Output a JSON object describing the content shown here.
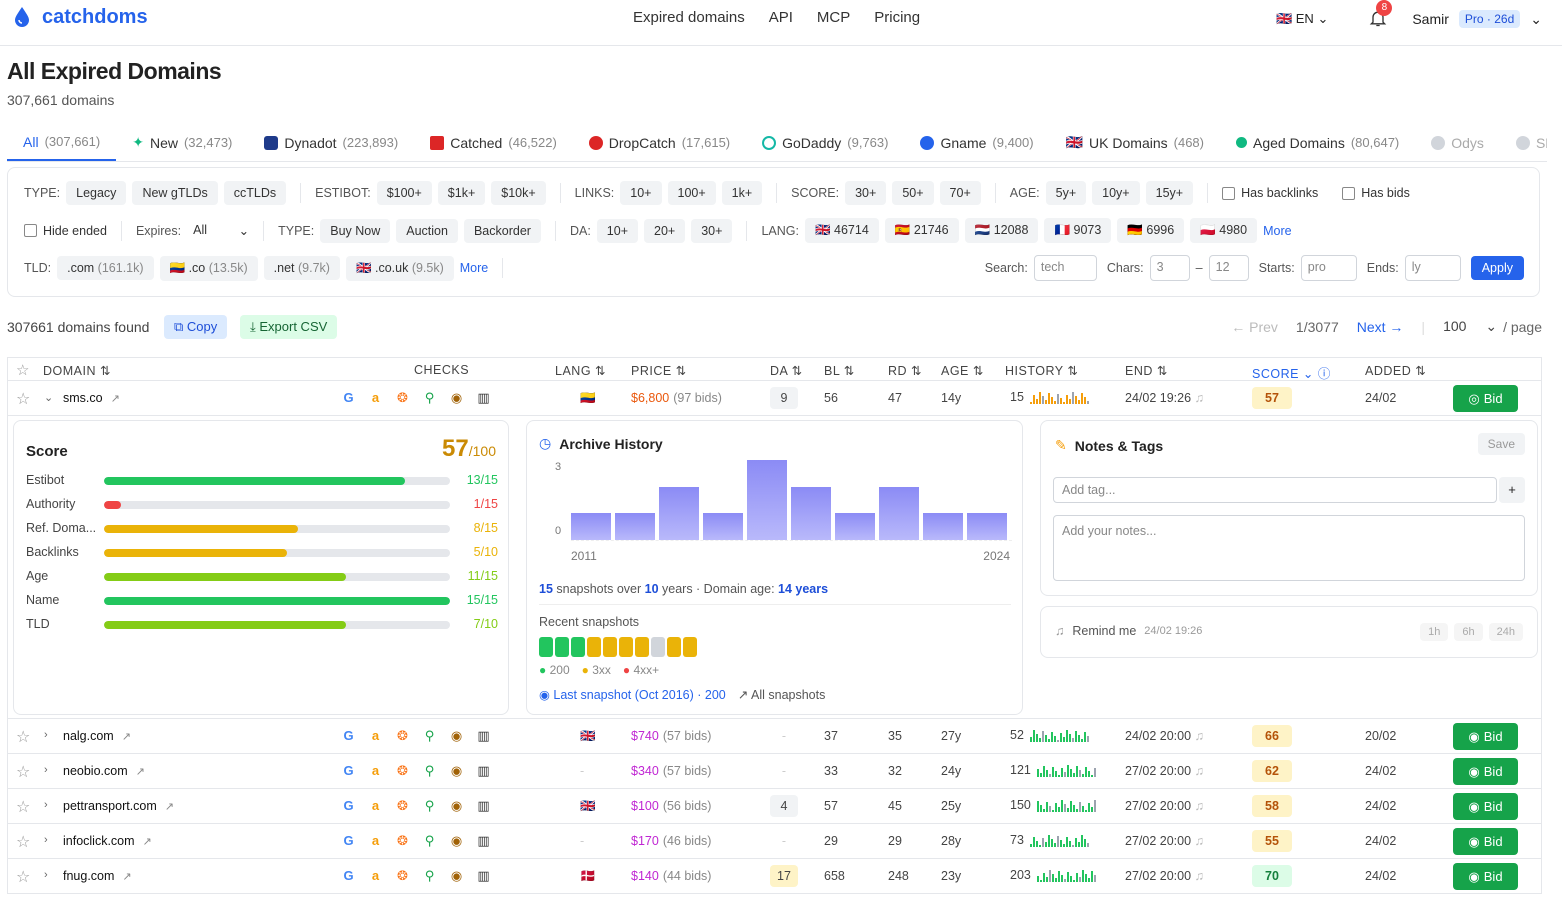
{
  "brand": "catchdoms",
  "nav": [
    "Expired domains",
    "API",
    "MCP",
    "Pricing"
  ],
  "lang": "EN",
  "notif_count": "8",
  "user": "Samir",
  "plan": "Pro · 26d",
  "title": "All Expired Domains",
  "subtitle": "307,661 domains",
  "tabs": [
    {
      "label": "All",
      "count": "(307,661)",
      "icon": "none"
    },
    {
      "label": "New",
      "count": "(32,473)",
      "icon": "sparkle-icon"
    },
    {
      "label": "Dynadot",
      "count": "(223,893)",
      "icon": "dynadot-icon"
    },
    {
      "label": "Catched",
      "count": "(46,522)",
      "icon": "catched-icon"
    },
    {
      "label": "DropCatch",
      "count": "(17,615)",
      "icon": "dropcatch-icon"
    },
    {
      "label": "GoDaddy",
      "count": "(9,763)",
      "icon": "godaddy-icon"
    },
    {
      "label": "Gname",
      "count": "(9,400)",
      "icon": "gname-icon"
    },
    {
      "label": "UK Domains",
      "count": "(468)",
      "icon": "uk-flag-icon"
    },
    {
      "label": "Aged Domains",
      "count": "(80,647)",
      "icon": "aged-icon"
    },
    {
      "label": "Odys",
      "count": "",
      "icon": "odys-icon"
    },
    {
      "label": "SEO.",
      "count": "",
      "icon": "seo-icon"
    }
  ],
  "filters": {
    "type_label": "TYPE:",
    "type": [
      "Legacy",
      "New gTLDs",
      "ccTLDs"
    ],
    "estibot_label": "ESTIBOT:",
    "estibot": [
      "$100+",
      "$1k+",
      "$10k+"
    ],
    "links_label": "LINKS:",
    "links": [
      "10+",
      "100+",
      "1k+"
    ],
    "score_label": "SCORE:",
    "score": [
      "30+",
      "50+",
      "70+"
    ],
    "age_label": "AGE:",
    "age": [
      "5y+",
      "10y+",
      "15y+"
    ],
    "has_backlinks": "Has backlinks",
    "has_bids": "Has bids",
    "hide_ended": "Hide ended",
    "expires_label": "Expires:",
    "expires_value": "All",
    "type2_label": "TYPE:",
    "type2": [
      "Buy Now",
      "Auction",
      "Backorder"
    ],
    "da_label": "DA:",
    "da": [
      "10+",
      "20+",
      "30+"
    ],
    "lang_label": "LANG:",
    "langs": [
      {
        "flag": "🇬🇧",
        "n": "46714"
      },
      {
        "flag": "🇪🇸",
        "n": "21746"
      },
      {
        "flag": "🇳🇱",
        "n": "12088"
      },
      {
        "flag": "🇫🇷",
        "n": "9073"
      },
      {
        "flag": "🇩🇪",
        "n": "6996"
      },
      {
        "flag": "🇵🇱",
        "n": "4980"
      }
    ],
    "more": "More",
    "tld_label": "TLD:",
    "tlds": [
      {
        "t": ".com",
        "n": "(161.1k)"
      },
      {
        "t": "🇨🇴 .co",
        "n": "(13.5k)"
      },
      {
        "t": ".net",
        "n": "(9.7k)"
      },
      {
        "t": "🇬🇧 .co.uk",
        "n": "(9.5k)"
      }
    ],
    "search_label": "Search:",
    "search_ph": "tech",
    "chars_label": "Chars:",
    "chars_min": "3",
    "chars_max": "12",
    "starts_label": "Starts:",
    "starts_ph": "pro",
    "ends_label": "Ends:",
    "ends_ph": "ly",
    "apply": "Apply"
  },
  "results": {
    "found": "307661 domains found",
    "copy": "Copy",
    "csv": "Export CSV",
    "prev": "← Prev",
    "page": "1/3077",
    "next": "Next →",
    "per": "100",
    "per_suffix": "/ page"
  },
  "columns": [
    "DOMAIN ⇅",
    "CHECKS",
    "LANG ⇅",
    "PRICE ⇅",
    "DA ⇅",
    "BL ⇅",
    "RD ⇅",
    "AGE ⇅",
    "HISTORY ⇅",
    "END ⇅",
    "SCORE ⌄ ⓘ",
    "ADDED ⇅"
  ],
  "rows": [
    {
      "domain": "sms.co",
      "lang": "🇨🇴",
      "price": "$6,800",
      "bids": "(97 bids)",
      "da": "9",
      "bl": "56",
      "rd": "47",
      "age": "14y",
      "hist": "15",
      "end": "24/02 19:26",
      "score": "57",
      "added": "24/02",
      "bid": "Bid"
    },
    {
      "domain": "nalg.com",
      "lang": "🇬🇧",
      "price": "$740",
      "bids": "(57 bids)",
      "da": "-",
      "bl": "37",
      "rd": "35",
      "age": "27y",
      "hist": "52",
      "end": "24/02 20:00",
      "score": "66",
      "added": "20/02",
      "bid": "Bid"
    },
    {
      "domain": "neobio.com",
      "lang": "-",
      "price": "$340",
      "bids": "(57 bids)",
      "da": "-",
      "bl": "33",
      "rd": "32",
      "age": "24y",
      "hist": "121",
      "end": "27/02 20:00",
      "score": "62",
      "added": "24/02",
      "bid": "Bid"
    },
    {
      "domain": "pettransport.com",
      "lang": "🇬🇧",
      "price": "$100",
      "bids": "(56 bids)",
      "da": "4",
      "bl": "57",
      "rd": "45",
      "age": "25y",
      "hist": "150",
      "end": "27/02 20:00",
      "score": "58",
      "added": "24/02",
      "bid": "Bid"
    },
    {
      "domain": "infoclick.com",
      "lang": "-",
      "price": "$170",
      "bids": "(46 bids)",
      "da": "-",
      "bl": "29",
      "rd": "29",
      "age": "28y",
      "hist": "73",
      "end": "27/02 20:00",
      "score": "55",
      "added": "24/02",
      "bid": "Bid"
    },
    {
      "domain": "fnug.com",
      "lang": "🇩🇰",
      "price": "$140",
      "bids": "(44 bids)",
      "da": "17",
      "bl": "658",
      "rd": "248",
      "age": "23y",
      "hist": "203",
      "end": "27/02 20:00",
      "score": "70",
      "added": "24/02",
      "bid": "Bid"
    }
  ],
  "score_card": {
    "title": "Score",
    "value": "57",
    "max": "/100",
    "items": [
      {
        "label": "Estibot",
        "val": "13/15",
        "pct": 0.87,
        "color": "#22c55e"
      },
      {
        "label": "Authority",
        "val": "1/15",
        "pct": 0.05,
        "color": "#ef4444"
      },
      {
        "label": "Ref. Doma...",
        "val": "8/15",
        "pct": 0.56,
        "color": "#eab308"
      },
      {
        "label": "Backlinks",
        "val": "5/10",
        "pct": 0.53,
        "color": "#eab308"
      },
      {
        "label": "Age",
        "val": "11/15",
        "pct": 0.7,
        "color": "#84cc16"
      },
      {
        "label": "Name",
        "val": "15/15",
        "pct": 1.0,
        "color": "#22c55e"
      },
      {
        "label": "TLD",
        "val": "7/10",
        "pct": 0.7,
        "color": "#84cc16"
      }
    ]
  },
  "archive": {
    "title": "Archive History",
    "y_top": "3",
    "y_bottom": "0",
    "x_start": "2011",
    "x_end": "2024",
    "values": [
      1,
      1,
      2,
      1,
      3,
      2,
      1,
      2,
      1,
      1
    ],
    "snap_a": "15",
    "snap_b": " snapshots over ",
    "snap_c": "10",
    "snap_d": " years · Domain age: ",
    "snap_e": "14 years",
    "recent": "Recent snapshots",
    "squares": [
      "#22c55e",
      "#22c55e",
      "#22c55e",
      "#eab308",
      "#eab308",
      "#eab308",
      "#eab308",
      "#d1d5db",
      "#eab308",
      "#eab308"
    ],
    "legend": [
      "200",
      "3xx",
      "4xx+"
    ],
    "last": "Last snapshot (Oct 2016) · 200",
    "all": "All snapshots"
  },
  "notes": {
    "title": "Notes & Tags",
    "save": "Save",
    "tag_ph": "Add tag...",
    "add": "+",
    "notes_ph": "Add your notes...",
    "remind": "Remind me",
    "remind_time": "24/02 19:26",
    "opts": [
      "1h",
      "6h",
      "24h"
    ]
  }
}
